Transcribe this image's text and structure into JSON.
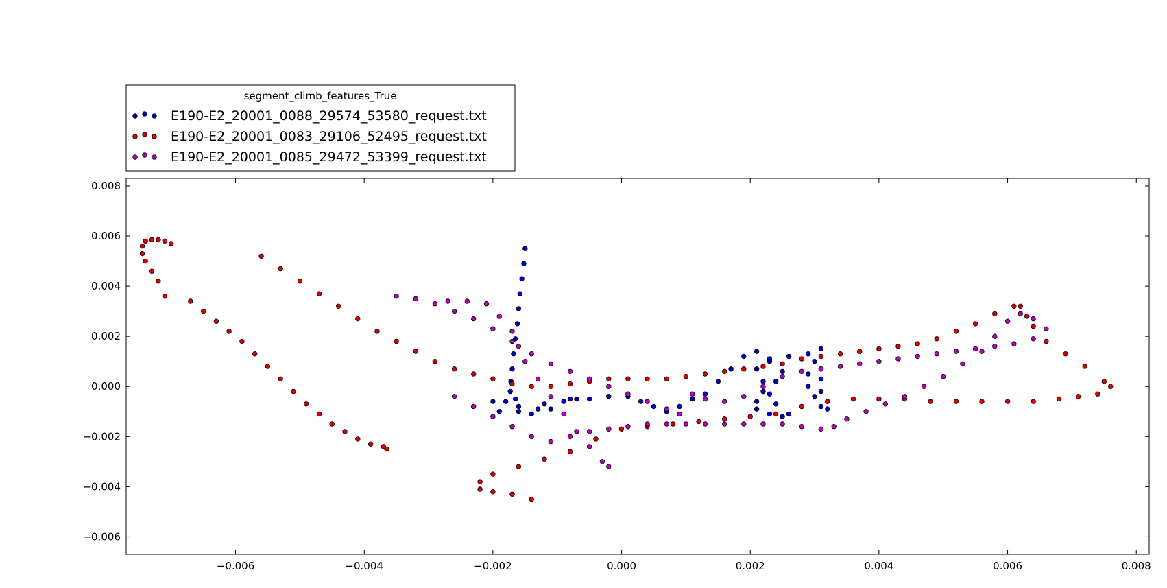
{
  "chart_data": {
    "type": "scatter",
    "title": "",
    "xlabel": "",
    "ylabel": "",
    "xlim": [
      -0.0077,
      0.0082
    ],
    "ylim": [
      -0.0067,
      0.0083
    ],
    "grid": false,
    "legend": {
      "title": "segment_climb_features_True",
      "placement": "top-left, above axes"
    },
    "x_ticks": [
      {
        "value": -0.006,
        "label": "−0.006"
      },
      {
        "value": -0.004,
        "label": "−0.004"
      },
      {
        "value": -0.002,
        "label": "−0.002"
      },
      {
        "value": 0.0,
        "label": "0.000"
      },
      {
        "value": 0.002,
        "label": "0.002"
      },
      {
        "value": 0.004,
        "label": "0.004"
      },
      {
        "value": 0.006,
        "label": "0.006"
      },
      {
        "value": 0.008,
        "label": "0.008"
      }
    ],
    "y_ticks": [
      {
        "value": -0.006,
        "label": "−0.006"
      },
      {
        "value": -0.004,
        "label": "−0.004"
      },
      {
        "value": -0.002,
        "label": "−0.002"
      },
      {
        "value": 0.0,
        "label": "0.000"
      },
      {
        "value": 0.002,
        "label": "0.002"
      },
      {
        "value": 0.004,
        "label": "0.004"
      },
      {
        "value": 0.006,
        "label": "0.006"
      },
      {
        "value": 0.008,
        "label": "0.008"
      }
    ],
    "series": [
      {
        "name": "E190-E2_20001_0088_29574_53580_request.txt",
        "color": "#0000cc",
        "points": [
          [
            -0.0015,
            0.0055
          ],
          [
            -0.00152,
            0.0049
          ],
          [
            -0.00155,
            0.0043
          ],
          [
            -0.00158,
            0.0037
          ],
          [
            -0.0016,
            0.0031
          ],
          [
            -0.00162,
            0.0025
          ],
          [
            -0.00165,
            0.0019
          ],
          [
            -0.00168,
            0.0013
          ],
          [
            -0.0017,
            0.0007
          ],
          [
            -0.00172,
            0.0002
          ],
          [
            -0.00173,
            -0.0002
          ],
          [
            -0.00165,
            -0.0005
          ],
          [
            -0.0018,
            -0.0006
          ],
          [
            -0.002,
            -0.0006
          ],
          [
            -0.0016,
            -0.0008
          ],
          [
            -0.0012,
            -0.0007
          ],
          [
            -0.0008,
            -0.0005
          ],
          [
            -0.0005,
            -0.0005
          ],
          [
            -0.0002,
            -0.0004
          ],
          [
            0.0001,
            -0.0004
          ],
          [
            0.0003,
            -0.0006
          ],
          [
            0.0005,
            -0.0008
          ],
          [
            0.0007,
            -0.001
          ],
          [
            0.0009,
            -0.0008
          ],
          [
            0.0011,
            -0.0005
          ],
          [
            0.0013,
            -0.0003
          ],
          [
            0.0015,
            0.0002
          ],
          [
            0.0017,
            0.0007
          ],
          [
            0.0019,
            0.0012
          ],
          [
            0.0021,
            0.0014
          ],
          [
            0.0023,
            0.001
          ],
          [
            0.0025,
            0.0006
          ],
          [
            0.0024,
            0.0002
          ],
          [
            0.0022,
            -0.0002
          ],
          [
            0.0021,
            -0.0006
          ],
          [
            0.0021,
            -0.0009
          ],
          [
            0.0023,
            -0.0011
          ],
          [
            0.0025,
            -0.0012
          ],
          [
            0.0026,
            -0.0011
          ],
          [
            0.0024,
            -0.0007
          ],
          [
            0.0023,
            -0.0003
          ],
          [
            0.0022,
            0.0002
          ],
          [
            0.0021,
            0.0007
          ],
          [
            0.0023,
            0.0011
          ],
          [
            0.0026,
            0.0012
          ],
          [
            0.0029,
            0.0013
          ],
          [
            0.0031,
            0.0015
          ],
          [
            0.003,
            0.001
          ],
          [
            0.0029,
            0.0005
          ],
          [
            0.0029,
            0.0
          ],
          [
            0.003,
            -0.0004
          ],
          [
            0.0031,
            -0.0008
          ],
          [
            0.0032,
            -0.0009
          ],
          [
            0.0032,
            -0.0006
          ],
          [
            0.0031,
            -0.0002
          ],
          [
            0.0031,
            0.0003
          ],
          [
            0.0031,
            0.0007
          ],
          [
            -0.0013,
            -0.0009
          ],
          [
            -0.0016,
            -0.001
          ],
          [
            -0.0019,
            -0.001
          ],
          [
            -0.0014,
            -0.0011
          ],
          [
            -0.0011,
            -0.0009
          ],
          [
            -0.0009,
            -0.0006
          ],
          [
            -0.0007,
            -0.0005
          ]
        ]
      },
      {
        "name": "E190-E2_20001_0083_29106_52495_request.txt",
        "color": "#dd0000",
        "points": [
          [
            -0.007,
            0.0057
          ],
          [
            -0.0071,
            0.0058
          ],
          [
            -0.0072,
            0.00585
          ],
          [
            -0.0073,
            0.00585
          ],
          [
            -0.0074,
            0.0058
          ],
          [
            -0.00745,
            0.0056
          ],
          [
            -0.00745,
            0.0053
          ],
          [
            -0.0074,
            0.005
          ],
          [
            -0.0073,
            0.0046
          ],
          [
            -0.0072,
            0.0042
          ],
          [
            -0.0071,
            0.0036
          ],
          [
            -0.0067,
            0.0034
          ],
          [
            -0.0065,
            0.003
          ],
          [
            -0.0063,
            0.0026
          ],
          [
            -0.0061,
            0.0022
          ],
          [
            -0.0059,
            0.0018
          ],
          [
            -0.0057,
            0.0013
          ],
          [
            -0.0055,
            0.0008
          ],
          [
            -0.0053,
            0.0003
          ],
          [
            -0.0051,
            -0.0002
          ],
          [
            -0.0049,
            -0.0007
          ],
          [
            -0.0047,
            -0.0011
          ],
          [
            -0.0045,
            -0.0015
          ],
          [
            -0.0043,
            -0.0018
          ],
          [
            -0.0041,
            -0.0021
          ],
          [
            -0.0039,
            -0.0023
          ],
          [
            -0.0037,
            -0.0024
          ],
          [
            -0.00365,
            -0.0025
          ],
          [
            -0.0056,
            0.0052
          ],
          [
            -0.0053,
            0.0047
          ],
          [
            -0.005,
            0.0042
          ],
          [
            -0.0047,
            0.0037
          ],
          [
            -0.0044,
            0.0032
          ],
          [
            -0.0041,
            0.0027
          ],
          [
            -0.0038,
            0.0022
          ],
          [
            -0.0035,
            0.0018
          ],
          [
            -0.0032,
            0.0014
          ],
          [
            -0.0029,
            0.001
          ],
          [
            -0.0026,
            0.0007
          ],
          [
            -0.0023,
            0.0005
          ],
          [
            -0.002,
            0.0003
          ],
          [
            -0.0017,
            0.0001
          ],
          [
            -0.0014,
            0.0
          ],
          [
            -0.0011,
            0.0
          ],
          [
            -0.0008,
            0.0001
          ],
          [
            -0.0005,
            0.0002
          ],
          [
            -0.0002,
            0.0003
          ],
          [
            0.0001,
            0.0003
          ],
          [
            0.0004,
            0.0003
          ],
          [
            0.0007,
            0.0003
          ],
          [
            0.001,
            0.0004
          ],
          [
            0.0013,
            0.0005
          ],
          [
            0.0016,
            0.0006
          ],
          [
            0.0019,
            0.0007
          ],
          [
            0.0022,
            0.0008
          ],
          [
            0.0025,
            0.0009
          ],
          [
            0.0028,
            0.0011
          ],
          [
            0.0031,
            0.0012
          ],
          [
            0.0034,
            0.0013
          ],
          [
            0.0037,
            0.0014
          ],
          [
            0.004,
            0.0015
          ],
          [
            0.0043,
            0.0016
          ],
          [
            0.0046,
            0.0017
          ],
          [
            0.0049,
            0.0019
          ],
          [
            0.0052,
            0.0022
          ],
          [
            0.0055,
            0.0025
          ],
          [
            0.0058,
            0.0029
          ],
          [
            0.0061,
            0.0032
          ],
          [
            0.0062,
            0.0032
          ],
          [
            0.0063,
            0.0028
          ],
          [
            0.0064,
            0.0024
          ],
          [
            0.0066,
            0.0018
          ],
          [
            0.0069,
            0.0013
          ],
          [
            0.0072,
            0.0008
          ],
          [
            0.0075,
            0.0002
          ],
          [
            0.0076,
            0.0
          ],
          [
            0.0074,
            -0.0003
          ],
          [
            0.0071,
            -0.0004
          ],
          [
            0.0068,
            -0.0005
          ],
          [
            0.0064,
            -0.0006
          ],
          [
            0.006,
            -0.0006
          ],
          [
            0.0056,
            -0.0006
          ],
          [
            0.0052,
            -0.0006
          ],
          [
            0.0048,
            -0.0006
          ],
          [
            0.0044,
            -0.0005
          ],
          [
            0.004,
            -0.0005
          ],
          [
            0.0036,
            -0.0005
          ],
          [
            0.0032,
            -0.0006
          ],
          [
            0.0028,
            -0.0008
          ],
          [
            0.0024,
            -0.0011
          ],
          [
            0.002,
            -0.0012
          ],
          [
            0.0016,
            -0.0013
          ],
          [
            0.0012,
            -0.0014
          ],
          [
            0.0008,
            -0.0015
          ],
          [
            0.0004,
            -0.0016
          ],
          [
            0.0,
            -0.0017
          ],
          [
            -0.0004,
            -0.0021
          ],
          [
            -0.0008,
            -0.0026
          ],
          [
            -0.0012,
            -0.0029
          ],
          [
            -0.0016,
            -0.0032
          ],
          [
            -0.002,
            -0.0035
          ],
          [
            -0.0022,
            -0.0038
          ],
          [
            -0.0022,
            -0.0041
          ],
          [
            -0.002,
            -0.0042
          ],
          [
            -0.0017,
            -0.0043
          ],
          [
            -0.0014,
            -0.0045
          ]
        ]
      },
      {
        "name": "E190-E2_20001_0085_29472_53399_request.txt",
        "color": "#bb00bb",
        "points": [
          [
            -0.0035,
            0.0036
          ],
          [
            -0.0032,
            0.0035
          ],
          [
            -0.0029,
            0.0033
          ],
          [
            -0.0026,
            0.003
          ],
          [
            -0.0023,
            0.0027
          ],
          [
            -0.002,
            0.0023
          ],
          [
            -0.0017,
            0.0018
          ],
          [
            -0.0014,
            0.0013
          ],
          [
            -0.0011,
            0.0009
          ],
          [
            -0.0008,
            0.0006
          ],
          [
            -0.0005,
            0.0003
          ],
          [
            -0.0002,
            0.0
          ],
          [
            0.0001,
            -0.0003
          ],
          [
            0.0004,
            -0.0006
          ],
          [
            0.0007,
            -0.0009
          ],
          [
            0.0009,
            -0.0011
          ],
          [
            -0.0027,
            0.0034
          ],
          [
            -0.0024,
            0.0034
          ],
          [
            -0.0021,
            0.0033
          ],
          [
            -0.0019,
            0.0028
          ],
          [
            -0.0017,
            0.0022
          ],
          [
            -0.0016,
            0.0016
          ],
          [
            -0.0015,
            0.001
          ],
          [
            -0.0013,
            0.0003
          ],
          [
            -0.0011,
            -0.0004
          ],
          [
            -0.0009,
            -0.0011
          ],
          [
            -0.0007,
            -0.0018
          ],
          [
            -0.0005,
            -0.0024
          ],
          [
            -0.0003,
            -0.003
          ],
          [
            -0.0002,
            -0.0032
          ],
          [
            -0.0026,
            -0.0004
          ],
          [
            -0.0023,
            -0.0008
          ],
          [
            -0.002,
            -0.0012
          ],
          [
            -0.0017,
            -0.0016
          ],
          [
            -0.0014,
            -0.002
          ],
          [
            -0.0011,
            -0.0022
          ],
          [
            -0.0008,
            -0.002
          ],
          [
            -0.0005,
            -0.0018
          ],
          [
            -0.0002,
            -0.0017
          ],
          [
            0.0001,
            -0.0016
          ],
          [
            0.0004,
            -0.0015
          ],
          [
            0.0007,
            -0.0015
          ],
          [
            0.001,
            -0.0015
          ],
          [
            0.0013,
            -0.0015
          ],
          [
            0.0016,
            -0.0015
          ],
          [
            0.0019,
            -0.0015
          ],
          [
            0.0022,
            -0.0015
          ],
          [
            0.0025,
            -0.0015
          ],
          [
            0.0028,
            -0.0016
          ],
          [
            0.0031,
            -0.0017
          ],
          [
            0.0033,
            -0.0016
          ],
          [
            0.0035,
            -0.0013
          ],
          [
            0.0038,
            -0.001
          ],
          [
            0.0041,
            -0.0007
          ],
          [
            0.0044,
            -0.0004
          ],
          [
            0.0047,
            0.0
          ],
          [
            0.005,
            0.0004
          ],
          [
            0.0053,
            0.0009
          ],
          [
            0.0056,
            0.0014
          ],
          [
            0.0058,
            0.002
          ],
          [
            0.006,
            0.0026
          ],
          [
            0.0062,
            0.0029
          ],
          [
            0.0064,
            0.0027
          ],
          [
            0.0066,
            0.0023
          ],
          [
            0.0064,
            0.0019
          ],
          [
            0.0061,
            0.0017
          ],
          [
            0.0058,
            0.0016
          ],
          [
            0.0055,
            0.0015
          ],
          [
            0.0052,
            0.0014
          ],
          [
            0.0049,
            0.0013
          ],
          [
            0.0046,
            0.0012
          ],
          [
            0.0043,
            0.0011
          ],
          [
            0.004,
            0.001
          ],
          [
            0.0037,
            0.0009
          ],
          [
            0.0034,
            0.0008
          ],
          [
            0.0031,
            0.0007
          ],
          [
            0.0028,
            0.0006
          ],
          [
            0.0025,
            0.0004
          ],
          [
            0.0022,
            0.0
          ],
          [
            0.0019,
            -0.0004
          ],
          [
            0.0016,
            -0.0006
          ],
          [
            0.0013,
            -0.0005
          ],
          [
            0.0011,
            -0.0003
          ]
        ]
      }
    ]
  }
}
